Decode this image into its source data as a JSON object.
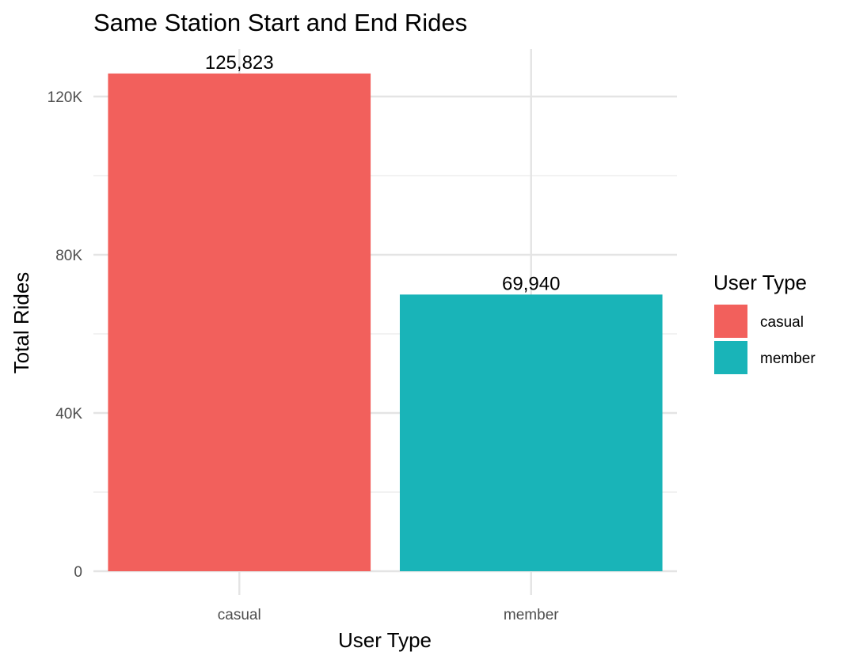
{
  "chart_data": {
    "type": "bar",
    "title": "Same Station Start and End Rides",
    "xlabel": "User Type",
    "ylabel": "Total Rides",
    "categories": [
      "casual",
      "member"
    ],
    "values": [
      125823,
      69940
    ],
    "data_labels": [
      "125,823",
      "69,940"
    ],
    "colors": [
      "#F2605C",
      "#19B4B8"
    ],
    "ylim": [
      0,
      132000
    ],
    "yticks": [
      0,
      40000,
      80000,
      120000
    ],
    "ytick_labels": [
      "0",
      "40K",
      "80K",
      "120K"
    ],
    "grid": true,
    "legend": {
      "title": "User Type",
      "placement": "right",
      "entries": [
        "casual",
        "member"
      ]
    }
  }
}
